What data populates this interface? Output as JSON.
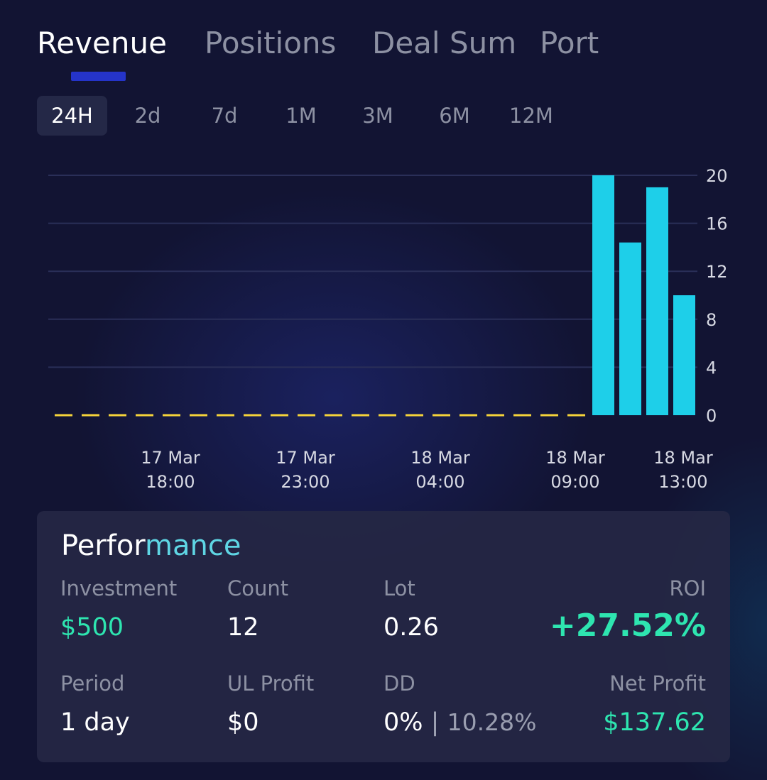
{
  "tabs": [
    "Revenue",
    "Positions",
    "Deal Sum",
    "Port"
  ],
  "active_tab": "Revenue",
  "ranges": [
    "24H",
    "2d",
    "7d",
    "1M",
    "3M",
    "6M",
    "12M"
  ],
  "active_range": "24H",
  "colors": {
    "bar": "#1ecfe9",
    "baseline": "#f5d33a",
    "positive": "#2ee5b0",
    "tab_indicator": "#2534c9"
  },
  "chart_data": {
    "type": "bar",
    "title": "",
    "xlabel": "",
    "ylabel": "",
    "ylim": [
      0,
      20
    ],
    "y_ticks": [
      20,
      16,
      12,
      8,
      4,
      0
    ],
    "x_tick_labels": [
      [
        "17 Mar",
        "18:00"
      ],
      [
        "17 Mar",
        "23:00"
      ],
      [
        "18 Mar",
        "04:00"
      ],
      [
        "18 Mar",
        "09:00"
      ],
      [
        "18 Mar",
        "13:00"
      ]
    ],
    "values": [
      0,
      0,
      0,
      0,
      0,
      0,
      0,
      0,
      0,
      0,
      0,
      0,
      0,
      0,
      0,
      0,
      0,
      0,
      0,
      0,
      20,
      14.4,
      19,
      10
    ]
  },
  "performance": {
    "title_part1": "Perfor",
    "title_part2": "mance",
    "investment_label": "Investment",
    "investment_value": "$500",
    "count_label": "Count",
    "count_value": "12",
    "lot_label": "Lot",
    "lot_value": "0.26",
    "roi_label": "ROI",
    "roi_value": "+27.52%",
    "period_label": "Period",
    "period_value": "1 day",
    "ul_profit_label": "UL Profit",
    "ul_profit_value": "$0",
    "dd_label": "DD",
    "dd_value": "0%",
    "dd_separator": "|",
    "dd_max_value": "10.28%",
    "net_profit_label": "Net Profit",
    "net_profit_value": "$137.62"
  }
}
